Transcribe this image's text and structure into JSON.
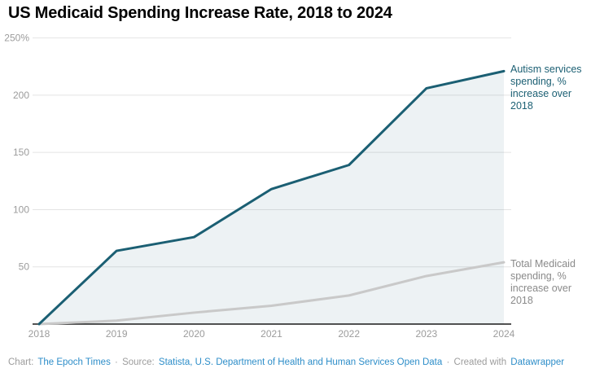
{
  "title": "US Medicaid Spending Increase Rate, 2018 to 2024",
  "chart_data": {
    "type": "line",
    "x": [
      2018,
      2019,
      2020,
      2021,
      2022,
      2023,
      2024
    ],
    "x_tick_labels": [
      "2018",
      "2019",
      "2020",
      "2021",
      "2022",
      "2023",
      "2024"
    ],
    "series": [
      {
        "name": "Autism services spending, % increase over 2018",
        "values": [
          0,
          64,
          76,
          118,
          139,
          206,
          221
        ],
        "color": "#1b5f73",
        "area_fill": "rgba(27,95,115,0.08)",
        "line_width": 3
      },
      {
        "name": "Total Medicaid spending, % increase over 2018",
        "values": [
          0,
          3,
          10,
          16,
          25,
          42,
          54
        ],
        "color": "#c9c9c9",
        "area_fill": null,
        "line_width": 3
      }
    ],
    "ylim": [
      0,
      250
    ],
    "yticks": [
      {
        "value": 50,
        "label": "50"
      },
      {
        "value": 100,
        "label": "100"
      },
      {
        "value": 150,
        "label": "150"
      },
      {
        "value": 200,
        "label": "200"
      },
      {
        "value": 250,
        "label": "250%"
      }
    ],
    "grid": true,
    "legend_position": "right-annotations",
    "xlabel": "",
    "ylabel": ""
  },
  "annotations": {
    "autism": "Autism services spending, % increase over 2018",
    "medicaid": "Total Medicaid spending, % increase over 2018"
  },
  "colors": {
    "accent_teal": "#1b5f73",
    "series_gray": "#c9c9c9",
    "gridline": "#e4e4e4",
    "axis_line": "#1a1a1a",
    "tick_text": "#9c9c9c",
    "link_blue": "#2e8ec9"
  },
  "footer": {
    "chart_prefix": "Chart:",
    "chart_link": "The Epoch Times",
    "sep": "·",
    "source_prefix": "Source:",
    "source_link": "Statista, U.S. Department of Health and Human Services Open Data",
    "created_prefix": "Created with",
    "created_link": "Datawrapper"
  }
}
